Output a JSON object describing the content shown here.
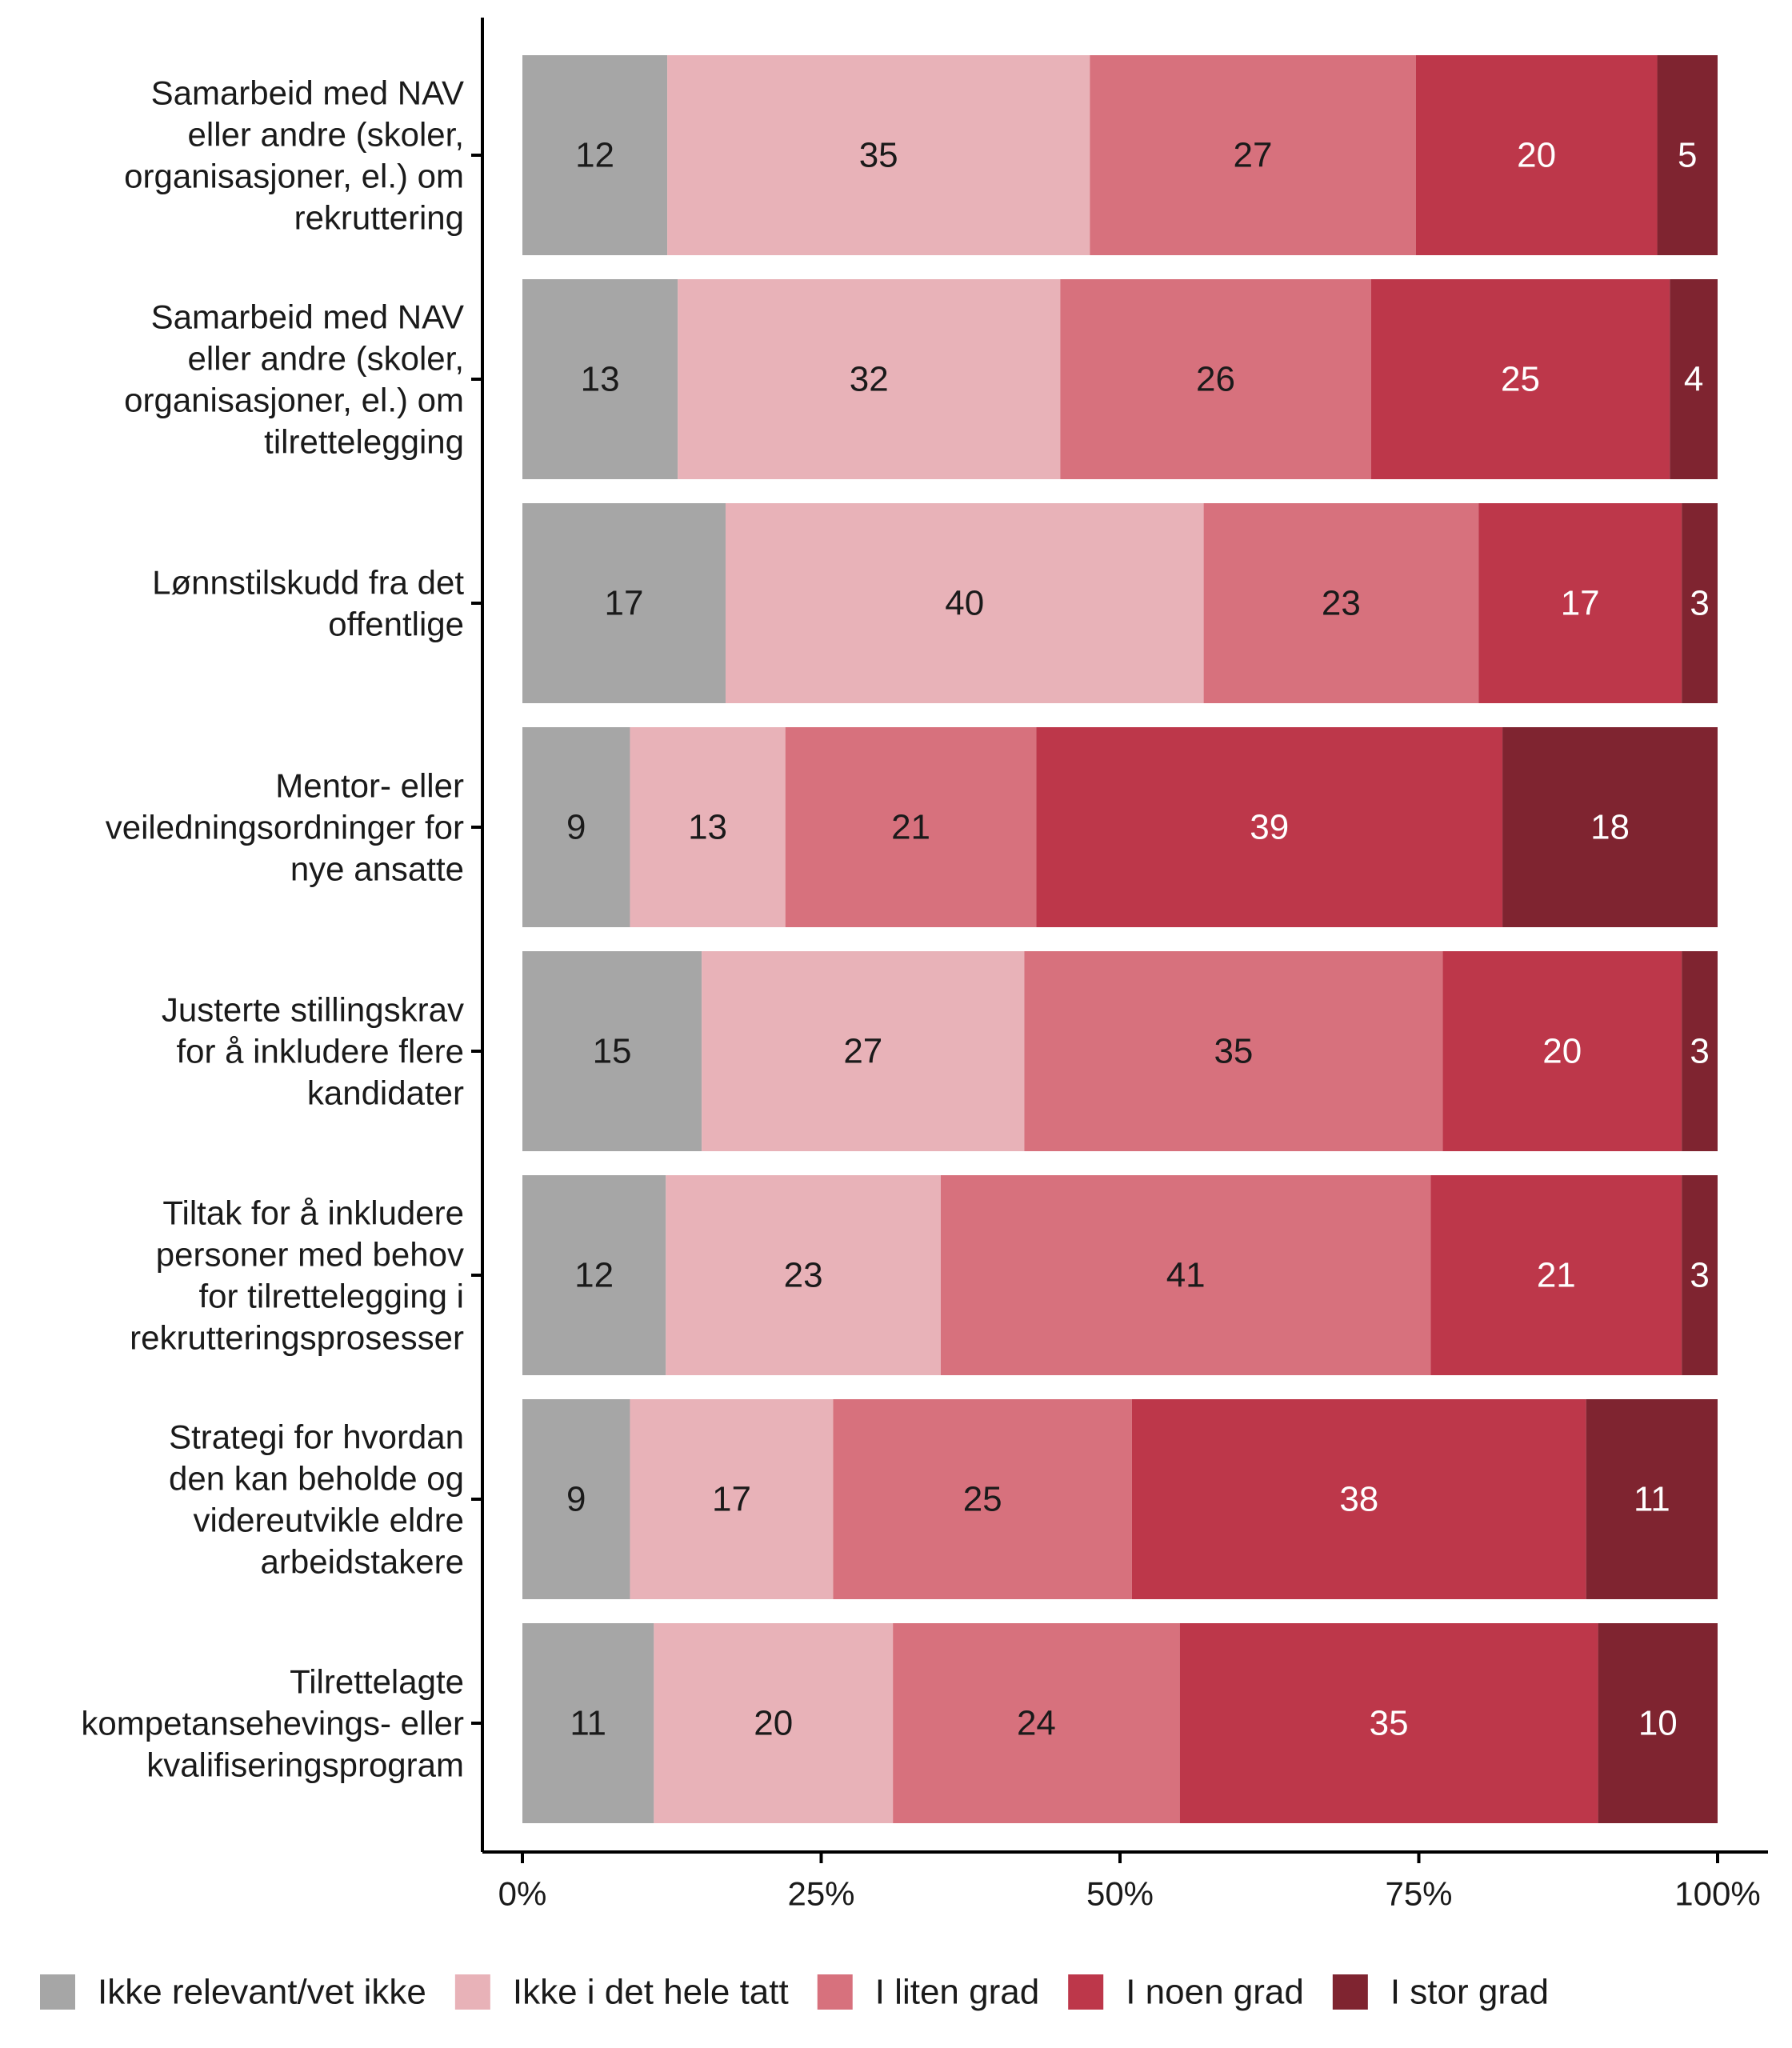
{
  "chart_data": {
    "type": "bar",
    "orientation": "horizontal",
    "stacked": "percent",
    "categories": [
      [
        "Samarbeid med NAV",
        "eller andre (skoler,",
        "organisasjoner, el.) om",
        "rekruttering"
      ],
      [
        "Samarbeid med NAV",
        "eller andre (skoler,",
        "organisasjoner, el.) om",
        "tilrettelegging"
      ],
      [
        "Lønnstilskudd fra det",
        "offentlige"
      ],
      [
        "Mentor- eller",
        "veiledningsordninger for",
        "nye ansatte"
      ],
      [
        "Justerte stillingskrav",
        "for å inkludere flere",
        "kandidater"
      ],
      [
        "Tiltak for å inkludere",
        "personer med behov",
        "for tilrettelegging i",
        "rekrutteringsprosesser"
      ],
      [
        "Strategi for hvordan",
        "den kan beholde og",
        "videreutvikle eldre",
        "arbeidstakere"
      ],
      [
        "Tilrettelagte",
        "kompetansehevings- eller",
        "kvalifiseringsprogram"
      ]
    ],
    "series": [
      {
        "name": "Ikke relevant/vet ikke",
        "color": "#a6a6a6",
        "label_color": "#1a1a1a",
        "values": [
          12,
          13,
          17,
          9,
          15,
          12,
          9,
          11
        ]
      },
      {
        "name": "Ikke i det hele tatt",
        "color": "#e8b2b8",
        "label_color": "#1a1a1a",
        "values": [
          35,
          32,
          40,
          13,
          27,
          23,
          17,
          20
        ]
      },
      {
        "name": "I liten grad",
        "color": "#d7717d",
        "label_color": "#1a1a1a",
        "values": [
          27,
          26,
          23,
          21,
          35,
          41,
          25,
          24
        ]
      },
      {
        "name": "I noen grad",
        "color": "#bd374a",
        "label_color": "#ffffff",
        "values": [
          20,
          25,
          17,
          39,
          20,
          21,
          38,
          35
        ]
      },
      {
        "name": "I stor grad",
        "color": "#7f2430",
        "label_color": "#ffffff",
        "values": [
          5,
          4,
          3,
          18,
          3,
          3,
          11,
          10
        ]
      }
    ],
    "xlim": [
      0,
      100
    ],
    "x_ticks": [
      "0%",
      "25%",
      "50%",
      "75%",
      "100%"
    ],
    "legend_position": "bottom",
    "grid": false
  }
}
